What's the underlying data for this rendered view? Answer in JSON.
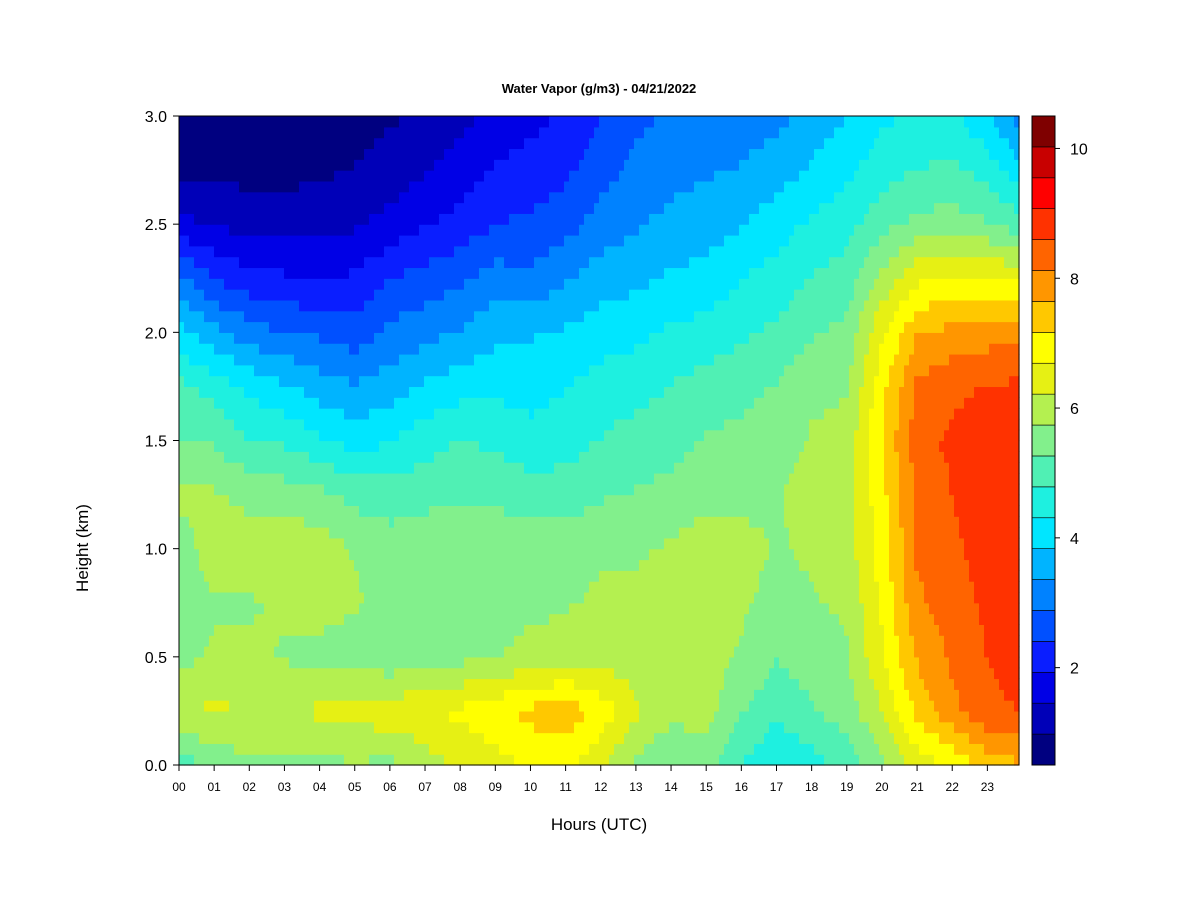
{
  "chart_data": {
    "type": "heatmap",
    "title": "Water Vapor (g/m3) - 04/21/2022",
    "xlabel": "Hours (UTC)",
    "ylabel": "Height (km)",
    "x_ticks": [
      "00",
      "01",
      "02",
      "03",
      "04",
      "05",
      "06",
      "07",
      "08",
      "09",
      "10",
      "11",
      "12",
      "13",
      "14",
      "15",
      "16",
      "17",
      "18",
      "19",
      "20",
      "21",
      "22",
      "23"
    ],
    "y_ticks": [
      "0.0",
      "0.5",
      "1.0",
      "1.5",
      "2.0",
      "2.5",
      "3.0"
    ],
    "xlim": [
      0,
      23.9
    ],
    "ylim": [
      0,
      3.0
    ],
    "colorbar": {
      "ticks": [
        "2",
        "4",
        "6",
        "8",
        "10"
      ],
      "tick_values": [
        2,
        4,
        6,
        8,
        10
      ],
      "range": [
        0.5,
        10.5
      ],
      "colors": [
        "#000080",
        "#0000b8",
        "#0000e6",
        "#0a1eff",
        "#0050ff",
        "#0082ff",
        "#00b4ff",
        "#00e6ff",
        "#1ef0e0",
        "#50f0b4",
        "#82f08c",
        "#b4f050",
        "#e6f014",
        "#ffff00",
        "#ffc800",
        "#ff9600",
        "#ff6400",
        "#ff3200",
        "#ff0000",
        "#c80000",
        "#7f0000"
      ]
    },
    "hours": [
      0,
      1,
      2,
      3,
      4,
      5,
      6,
      7,
      8,
      9,
      10,
      11,
      12,
      13,
      14,
      15,
      16,
      17,
      18,
      19,
      20,
      21,
      22,
      23,
      23.9
    ],
    "heights": [
      0.0,
      0.25,
      0.5,
      0.75,
      1.0,
      1.25,
      1.5,
      1.75,
      2.0,
      2.25,
      2.5,
      2.75,
      3.0
    ],
    "values": [
      [
        5.0,
        6.2,
        5.6,
        5.5,
        5.6,
        5.8,
        5.3,
        4.9,
        4.0,
        3.0,
        1.6,
        0.9,
        0.6
      ],
      [
        5.4,
        6.3,
        5.8,
        5.7,
        5.9,
        5.8,
        5.2,
        4.6,
        3.5,
        2.4,
        1.4,
        0.9,
        0.6
      ],
      [
        5.6,
        6.2,
        5.8,
        5.7,
        6.0,
        5.6,
        4.8,
        4.2,
        3.1,
        2.1,
        1.3,
        0.8,
        0.6
      ],
      [
        5.6,
        6.2,
        5.7,
        5.8,
        6.1,
        5.5,
        4.7,
        3.9,
        2.9,
        2.0,
        1.3,
        0.8,
        0.6
      ],
      [
        5.6,
        6.3,
        5.6,
        5.9,
        6.0,
        5.4,
        4.4,
        3.6,
        2.8,
        1.9,
        1.3,
        0.9,
        0.7
      ],
      [
        5.7,
        6.4,
        5.5,
        5.8,
        5.7,
        5.1,
        4.1,
        3.4,
        2.6,
        2.0,
        1.4,
        1.0,
        0.8
      ],
      [
        5.6,
        6.5,
        5.4,
        5.6,
        5.5,
        5.0,
        4.3,
        3.6,
        3.0,
        2.4,
        1.6,
        1.2,
        0.9
      ],
      [
        6.0,
        6.6,
        5.5,
        5.6,
        5.6,
        5.1,
        4.6,
        3.9,
        3.2,
        2.6,
        1.9,
        1.4,
        1.1
      ],
      [
        6.3,
        6.8,
        5.6,
        5.7,
        5.7,
        5.2,
        4.8,
        4.1,
        3.4,
        2.8,
        2.1,
        1.7,
        1.3
      ],
      [
        6.5,
        7.0,
        5.7,
        5.6,
        5.7,
        5.1,
        4.7,
        4.2,
        3.7,
        3.1,
        2.4,
        2.0,
        1.6
      ],
      [
        6.8,
        7.3,
        5.9,
        5.6,
        5.6,
        5.0,
        4.5,
        4.1,
        3.8,
        3.0,
        2.5,
        2.1,
        1.8
      ],
      [
        6.8,
        7.5,
        6.0,
        5.7,
        5.6,
        5.0,
        4.6,
        4.3,
        3.9,
        3.3,
        2.7,
        2.3,
        2.0
      ],
      [
        6.3,
        7.0,
        6.0,
        5.8,
        5.7,
        5.2,
        4.8,
        4.5,
        4.1,
        3.6,
        3.1,
        2.7,
        2.4
      ],
      [
        5.6,
        6.3,
        6.0,
        5.8,
        5.7,
        5.3,
        5.0,
        4.6,
        4.2,
        3.7,
        3.3,
        3.0,
        2.8
      ],
      [
        5.2,
        5.9,
        5.8,
        5.8,
        5.8,
        5.4,
        5.1,
        4.8,
        4.4,
        3.9,
        3.5,
        3.2,
        2.9
      ],
      [
        5.4,
        6.0,
        5.9,
        6.0,
        6.0,
        5.6,
        5.3,
        5.0,
        4.5,
        4.0,
        3.6,
        3.3,
        3.0
      ],
      [
        4.8,
        5.3,
        5.7,
        5.8,
        5.9,
        5.6,
        5.4,
        5.1,
        4.7,
        4.3,
        3.8,
        3.4,
        3.1
      ],
      [
        4.3,
        4.9,
        5.3,
        5.6,
        5.7,
        5.7,
        5.5,
        5.3,
        4.9,
        4.5,
        4.1,
        3.6,
        3.2
      ],
      [
        4.6,
        5.2,
        5.5,
        5.7,
        5.8,
        5.9,
        5.8,
        5.6,
        5.2,
        4.8,
        4.4,
        3.9,
        3.6
      ],
      [
        5.0,
        5.5,
        5.7,
        5.8,
        6.0,
        6.0,
        5.9,
        5.7,
        5.4,
        5.0,
        4.6,
        4.2,
        3.8
      ],
      [
        5.6,
        6.2,
        6.6,
        6.8,
        6.9,
        7.0,
        7.2,
        7.0,
        6.6,
        5.9,
        5.1,
        4.6,
        4.2
      ],
      [
        6.4,
        7.3,
        7.7,
        8.0,
        8.2,
        8.2,
        8.4,
        8.2,
        7.6,
        6.6,
        5.4,
        4.8,
        4.4
      ],
      [
        6.8,
        8.0,
        8.2,
        8.4,
        8.5,
        8.6,
        8.7,
        8.5,
        7.8,
        6.8,
        5.5,
        4.9,
        4.4
      ],
      [
        7.3,
        8.5,
        8.6,
        8.7,
        8.8,
        8.8,
        8.9,
        8.6,
        7.9,
        6.8,
        5.3,
        4.6,
        3.9
      ],
      [
        7.6,
        8.6,
        8.8,
        8.8,
        8.9,
        8.9,
        9.0,
        8.7,
        8.0,
        6.6,
        5.0,
        4.0,
        3.2
      ]
    ]
  }
}
